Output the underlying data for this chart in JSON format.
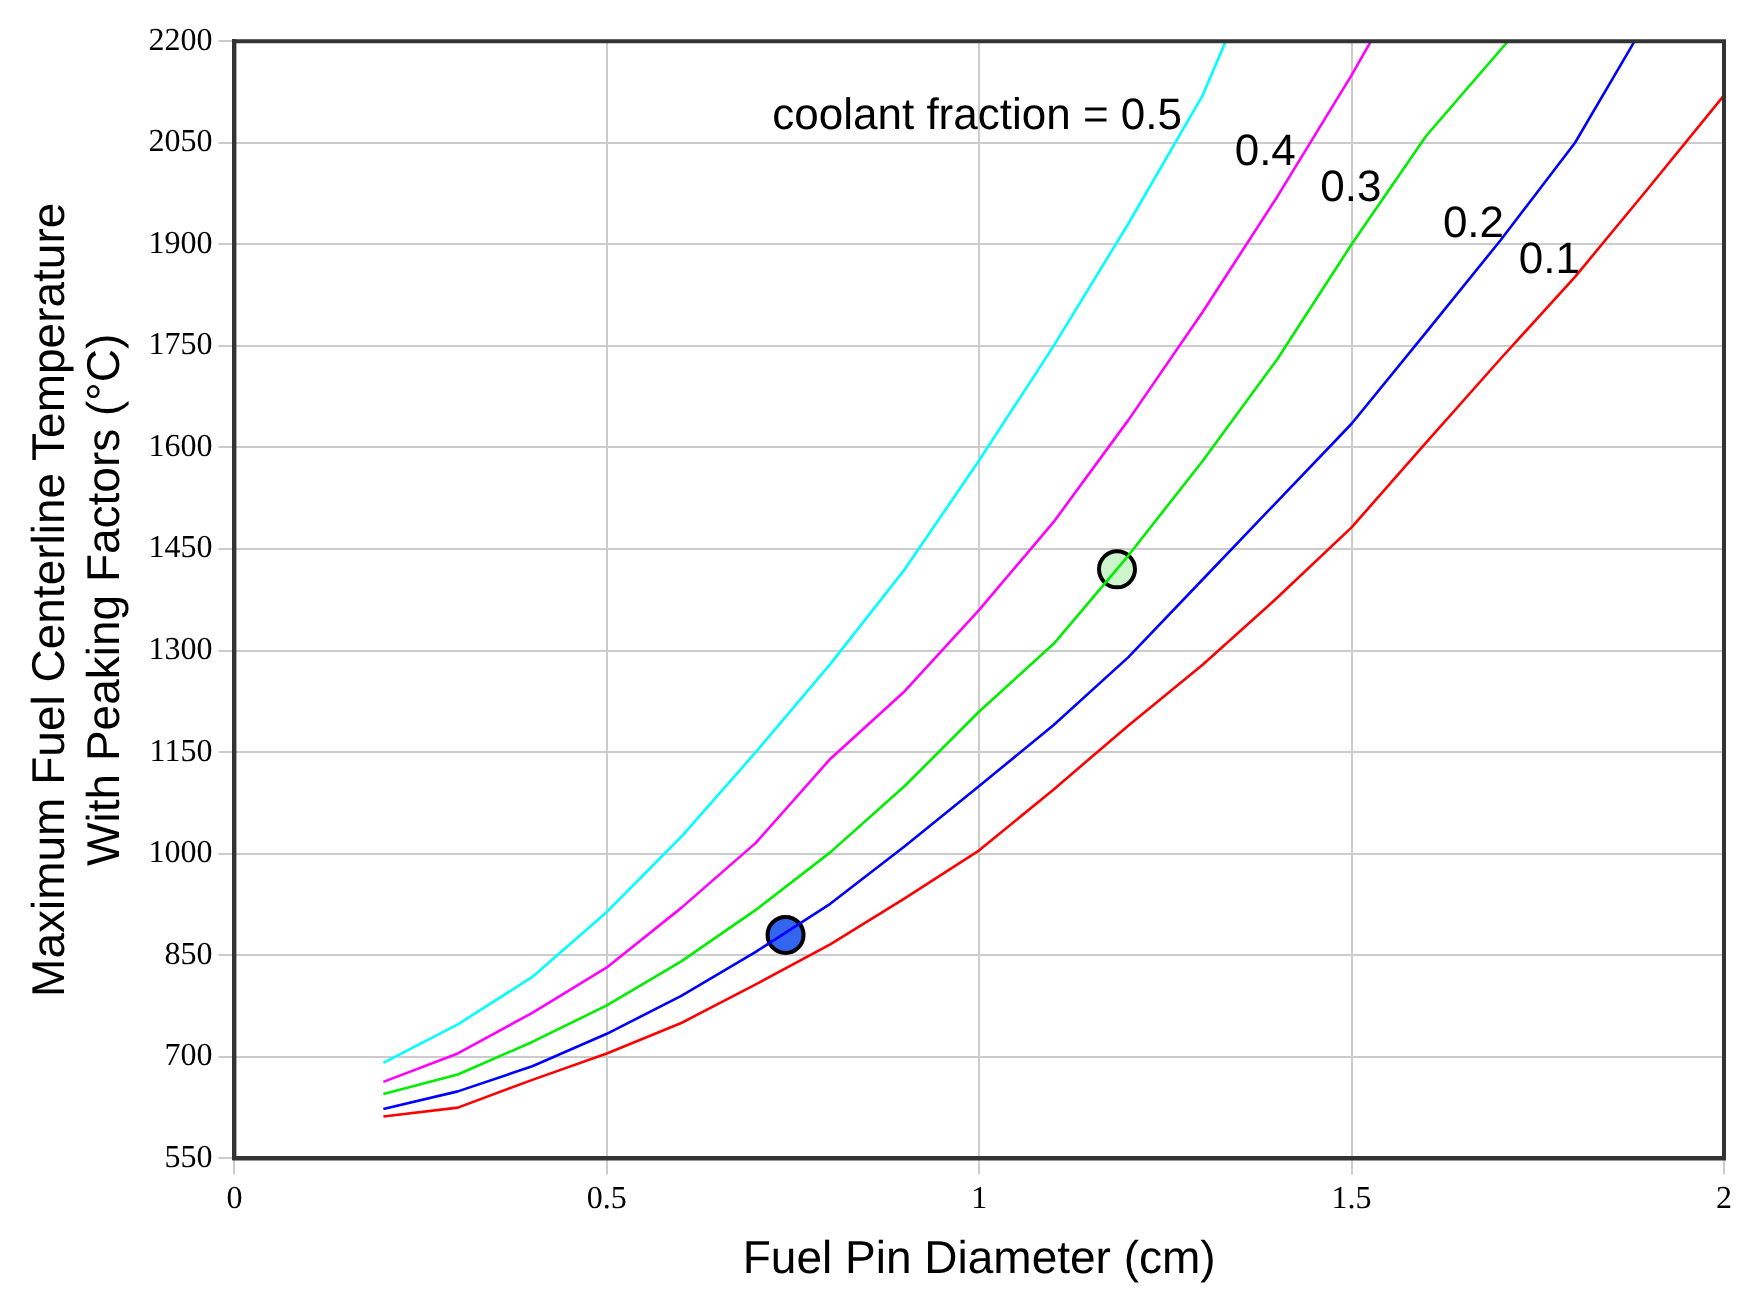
{
  "chart_data": {
    "type": "line",
    "xlabel": "Fuel Pin Diameter (cm)",
    "ylabel": "Maximum Fuel Centerline Temperature\nWith Peaking Factors (°C)",
    "xlim": [
      0,
      2
    ],
    "xticks": [
      0,
      0.5,
      1,
      1.5,
      2
    ],
    "ylim": [
      550,
      2200
    ],
    "yticks": [
      550,
      700,
      850,
      1000,
      1150,
      1300,
      1450,
      1600,
      1750,
      1900,
      2050,
      2200
    ],
    "grid": true,
    "legend": false,
    "marker": "none",
    "line_style": "solid",
    "series": [
      {
        "name": "0.1",
        "color": "#ff0000",
        "x": [
          0.2,
          0.3,
          0.4,
          0.5,
          0.6,
          0.7,
          0.8,
          0.9,
          1.0,
          1.1,
          1.2,
          1.3,
          1.4,
          1.5,
          1.6,
          1.7,
          1.8,
          1.9,
          2.0
        ],
        "values": [
          612,
          625,
          666,
          705,
          750,
          807,
          866,
          934,
          1005,
          1095,
          1189,
          1279,
          1378,
          1482,
          1607,
          1731,
          1852,
          1985,
          2120
        ]
      },
      {
        "name": "0.2",
        "color": "#0000ff",
        "x": [
          0.2,
          0.3,
          0.4,
          0.5,
          0.6,
          0.7,
          0.8,
          0.9,
          1.0,
          1.1,
          1.2,
          1.3,
          1.4,
          1.5,
          1.6,
          1.7,
          1.8,
          1.88
        ],
        "values": [
          623,
          649,
          686,
          734,
          790,
          855,
          926,
          1011,
          1100,
          1190,
          1290,
          1405,
          1520,
          1635,
          1770,
          1906,
          2050,
          2200
        ]
      },
      {
        "name": "0.3",
        "color": "#00ee00",
        "x": [
          0.2,
          0.3,
          0.4,
          0.5,
          0.6,
          0.7,
          0.8,
          0.9,
          1.0,
          1.1,
          1.2,
          1.3,
          1.4,
          1.5,
          1.6,
          1.71
        ],
        "values": [
          645,
          674,
          722,
          776,
          841,
          917,
          1002,
          1100,
          1210,
          1310,
          1440,
          1580,
          1730,
          1900,
          2060,
          2200
        ]
      },
      {
        "name": "0.4",
        "color": "#ff00ff",
        "x": [
          0.2,
          0.3,
          0.4,
          0.5,
          0.6,
          0.7,
          0.8,
          0.9,
          1.0,
          1.1,
          1.2,
          1.3,
          1.4,
          1.5,
          1.526
        ],
        "values": [
          663,
          705,
          765,
          832,
          920,
          1016,
          1140,
          1240,
          1360,
          1490,
          1640,
          1800,
          1970,
          2150,
          2200
        ]
      },
      {
        "name": "coolant fraction = 0.5",
        "color": "#00ffff",
        "x": [
          0.2,
          0.3,
          0.4,
          0.5,
          0.6,
          0.7,
          0.8,
          0.9,
          1.0,
          1.1,
          1.2,
          1.3,
          1.331
        ],
        "values": [
          691,
          748,
          818,
          914,
          1025,
          1150,
          1280,
          1420,
          1581,
          1750,
          1930,
          2120,
          2200
        ]
      },
      {
        "type": "scatter",
        "marker": "circle",
        "color": "#3366ee",
        "x": [
          0.74
        ],
        "values": [
          880
        ]
      },
      {
        "type": "scatter",
        "marker": "circle",
        "color": "#ccf5cc",
        "x": [
          1.185
        ],
        "values": [
          1420
        ]
      }
    ]
  }
}
